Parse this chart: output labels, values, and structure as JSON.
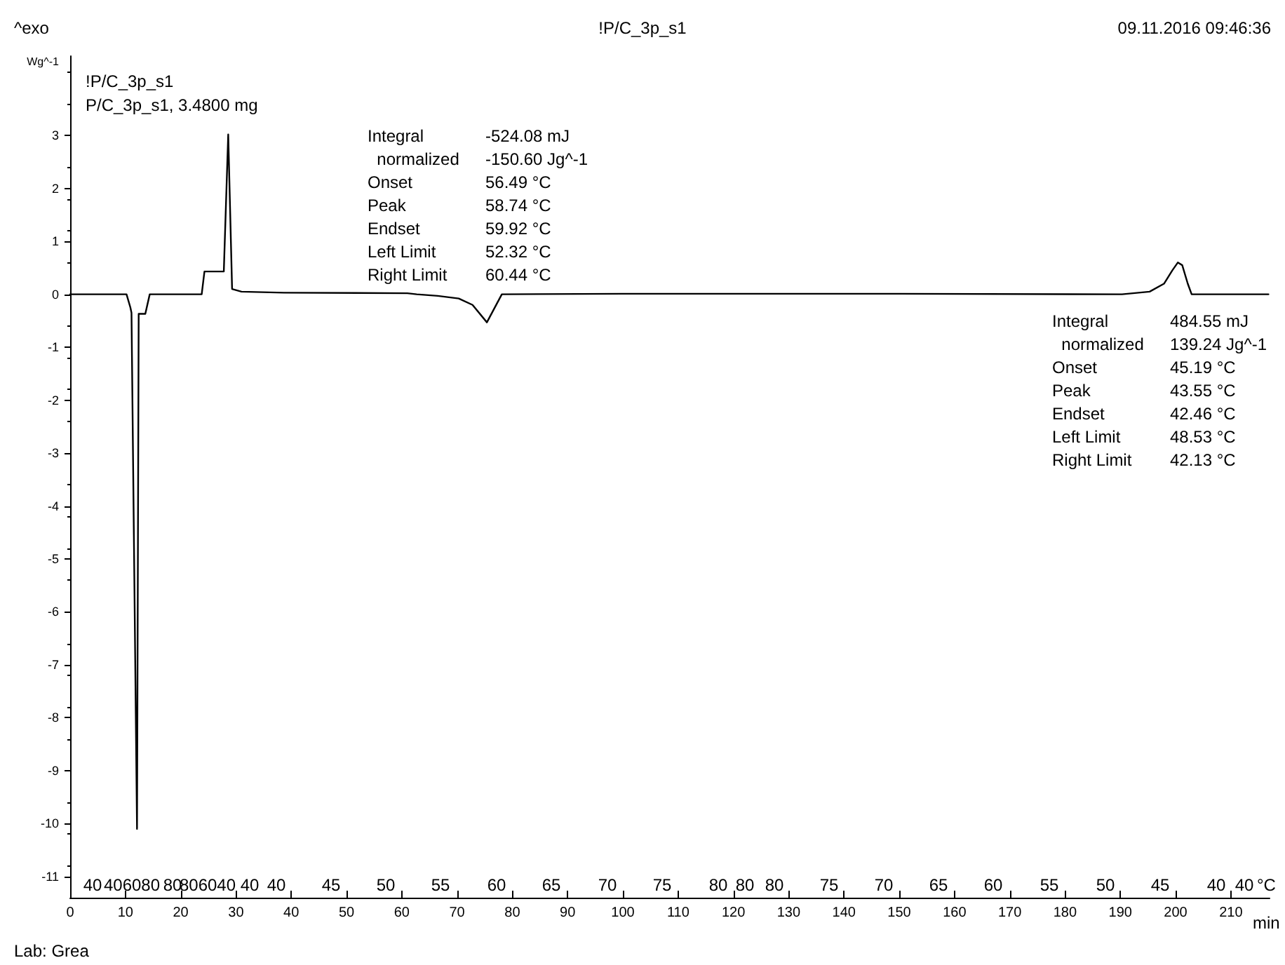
{
  "chart_data": {
    "type": "line",
    "title": "!P/C_3p_s1",
    "xlabel": "min",
    "x2label": "°C",
    "ylabel": "Wg^-1",
    "x": [
      0,
      10.2,
      10.9,
      11.1,
      12.1,
      12.4,
      13.6,
      14.4,
      23.8,
      24.3,
      27.8,
      28.6,
      29.3,
      31,
      38.7,
      61,
      62.7,
      66.5,
      70.3,
      72.8,
      75.4,
      78.1,
      100,
      150,
      190.3,
      195.3,
      197.9,
      199.4,
      200.4,
      201.2,
      202.2,
      202.9,
      216.8
    ],
    "series": [
      {
        "color": "#000000",
        "values": [
          0,
          0,
          -0.25,
          -0.35,
          -10.1,
          -0.37,
          -0.37,
          0,
          0,
          0.43,
          0.43,
          3.02,
          0.1,
          0.05,
          0.03,
          0.02,
          0,
          -0.03,
          -0.08,
          -0.2,
          -0.53,
          0,
          0.01,
          0.01,
          0,
          0.05,
          0.2,
          0.45,
          0.6,
          0.55,
          0.2,
          0,
          0
        ]
      }
    ],
    "xlim": [
      0,
      217
    ],
    "xticks": [
      0,
      10,
      20,
      30,
      40,
      50,
      60,
      70,
      80,
      90,
      100,
      110,
      120,
      130,
      140,
      150,
      160,
      170,
      180,
      190,
      200,
      210
    ],
    "ylim": [
      -11.4,
      4.5
    ],
    "yticks": [
      -11,
      -10,
      -9,
      -8,
      -7,
      -6,
      -5,
      -4,
      -3,
      -2,
      -1,
      0,
      1,
      2,
      3
    ],
    "grid": false,
    "annotations": [
      "^exo",
      "09.11.2016 09:46:36",
      "!P/C_3p_s1",
      "P/C_3p_s1, 3.4800 mg",
      "Lab: Grea",
      "Integral",
      "-524.08 mJ",
      "  normalized",
      "-150.60 Jg^-1",
      "Onset",
      "56.49 °C",
      "Peak",
      "58.74 °C",
      "Endset",
      "59.92 °C",
      "Left Limit",
      "52.32 °C",
      "Right Limit",
      "60.44 °C",
      "Integral",
      "484.55 mJ",
      "  normalized",
      "139.24 Jg^-1",
      "Onset",
      "45.19 °C",
      "Peak",
      "43.55 °C",
      "Endset",
      "42.46 °C",
      "Left Limit",
      "48.53 °C",
      "Right Limit",
      "42.13 °C",
      "40",
      "406080",
      "80",
      "806040",
      "40",
      "40",
      "45",
      "50",
      "55",
      "60",
      "65",
      "70",
      "75",
      "80",
      "80",
      "80",
      "75",
      "70",
      "65",
      "60",
      "55",
      "50",
      "45",
      "40",
      "40"
    ]
  }
}
